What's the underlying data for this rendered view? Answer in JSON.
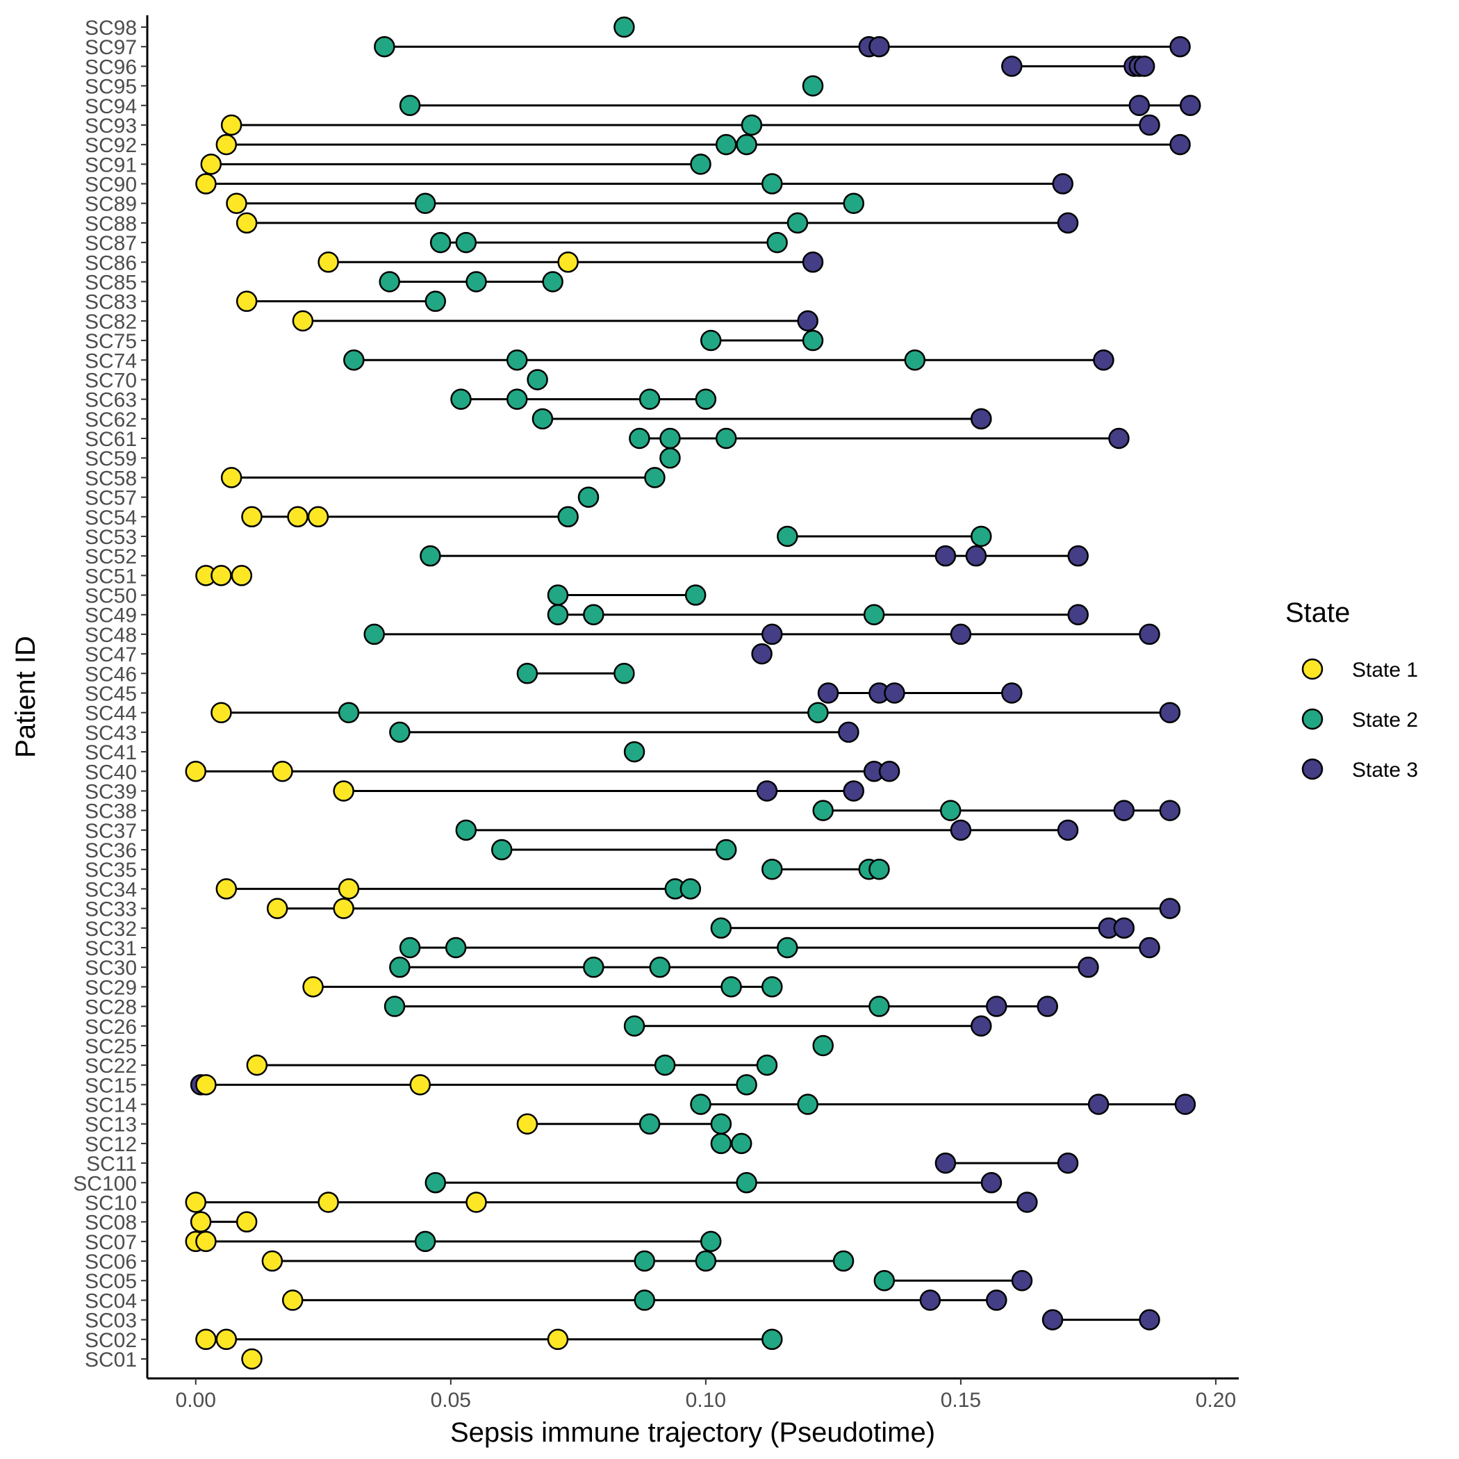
{
  "chart_data": {
    "type": "scatter",
    "subtype": "dot-range per patient",
    "xlabel": "Sepsis immune trajectory (Pseudotime)",
    "ylabel": "Patient ID",
    "xlim": [
      -0.0095,
      0.2045
    ],
    "xticks": [
      0.0,
      0.05,
      0.1,
      0.15,
      0.2
    ],
    "xtick_labels": [
      "0.00",
      "0.05",
      "0.10",
      "0.15",
      "0.20"
    ],
    "grid": false,
    "legend": {
      "title": "State",
      "position": "right",
      "entries": [
        {
          "label": "State 1",
          "color": "#FDE725"
        },
        {
          "label": "State 2",
          "color": "#21A784"
        },
        {
          "label": "State 3",
          "color": "#433E85"
        }
      ]
    },
    "patients": [
      {
        "id": "SC98",
        "points": [
          [
            0.084,
            2
          ]
        ]
      },
      {
        "id": "SC97",
        "points": [
          [
            0.037,
            2
          ],
          [
            0.132,
            3
          ],
          [
            0.134,
            3
          ],
          [
            0.193,
            3
          ]
        ]
      },
      {
        "id": "SC96",
        "points": [
          [
            0.16,
            3
          ],
          [
            0.184,
            3
          ],
          [
            0.185,
            3
          ],
          [
            0.186,
            3
          ]
        ]
      },
      {
        "id": "SC95",
        "points": [
          [
            0.121,
            2
          ]
        ]
      },
      {
        "id": "SC94",
        "points": [
          [
            0.042,
            2
          ],
          [
            0.185,
            3
          ],
          [
            0.195,
            3
          ]
        ]
      },
      {
        "id": "SC93",
        "points": [
          [
            0.007,
            1
          ],
          [
            0.109,
            2
          ],
          [
            0.187,
            3
          ]
        ]
      },
      {
        "id": "SC92",
        "points": [
          [
            0.006,
            1
          ],
          [
            0.104,
            2
          ],
          [
            0.108,
            2
          ],
          [
            0.193,
            3
          ]
        ]
      },
      {
        "id": "SC91",
        "points": [
          [
            0.003,
            1
          ],
          [
            0.099,
            2
          ]
        ]
      },
      {
        "id": "SC90",
        "points": [
          [
            0.002,
            1
          ],
          [
            0.113,
            2
          ],
          [
            0.17,
            3
          ]
        ]
      },
      {
        "id": "SC89",
        "points": [
          [
            0.008,
            1
          ],
          [
            0.045,
            2
          ],
          [
            0.129,
            2
          ]
        ]
      },
      {
        "id": "SC88",
        "points": [
          [
            0.01,
            1
          ],
          [
            0.118,
            2
          ],
          [
            0.171,
            3
          ]
        ]
      },
      {
        "id": "SC87",
        "points": [
          [
            0.048,
            2
          ],
          [
            0.053,
            2
          ],
          [
            0.114,
            2
          ]
        ]
      },
      {
        "id": "SC86",
        "points": [
          [
            0.026,
            1
          ],
          [
            0.073,
            1
          ],
          [
            0.121,
            3
          ]
        ]
      },
      {
        "id": "SC85",
        "points": [
          [
            0.038,
            2
          ],
          [
            0.055,
            2
          ],
          [
            0.07,
            2
          ]
        ]
      },
      {
        "id": "SC83",
        "points": [
          [
            0.01,
            1
          ],
          [
            0.047,
            2
          ]
        ]
      },
      {
        "id": "SC82",
        "points": [
          [
            0.021,
            1
          ],
          [
            0.12,
            3
          ]
        ]
      },
      {
        "id": "SC75",
        "points": [
          [
            0.101,
            2
          ],
          [
            0.121,
            2
          ]
        ]
      },
      {
        "id": "SC74",
        "points": [
          [
            0.031,
            2
          ],
          [
            0.063,
            2
          ],
          [
            0.141,
            2
          ],
          [
            0.178,
            3
          ]
        ]
      },
      {
        "id": "SC70",
        "points": [
          [
            0.067,
            2
          ]
        ]
      },
      {
        "id": "SC63",
        "points": [
          [
            0.052,
            2
          ],
          [
            0.063,
            2
          ],
          [
            0.089,
            2
          ],
          [
            0.1,
            2
          ]
        ]
      },
      {
        "id": "SC62",
        "points": [
          [
            0.068,
            2
          ],
          [
            0.154,
            3
          ],
          [
            0.154,
            3
          ]
        ]
      },
      {
        "id": "SC61",
        "points": [
          [
            0.087,
            2
          ],
          [
            0.093,
            2
          ],
          [
            0.104,
            2
          ],
          [
            0.181,
            3
          ]
        ]
      },
      {
        "id": "SC59",
        "points": [
          [
            0.093,
            2
          ]
        ]
      },
      {
        "id": "SC58",
        "points": [
          [
            0.007,
            1
          ],
          [
            0.09,
            2
          ]
        ]
      },
      {
        "id": "SC57",
        "points": [
          [
            0.077,
            2
          ]
        ]
      },
      {
        "id": "SC54",
        "points": [
          [
            0.011,
            1
          ],
          [
            0.02,
            1
          ],
          [
            0.024,
            1
          ],
          [
            0.073,
            2
          ]
        ]
      },
      {
        "id": "SC53",
        "points": [
          [
            0.116,
            2
          ],
          [
            0.154,
            2
          ]
        ]
      },
      {
        "id": "SC52",
        "points": [
          [
            0.046,
            2
          ],
          [
            0.147,
            3
          ],
          [
            0.153,
            3
          ],
          [
            0.173,
            3
          ]
        ]
      },
      {
        "id": "SC51",
        "points": [
          [
            0.002,
            1
          ],
          [
            0.005,
            1
          ],
          [
            0.009,
            1
          ]
        ]
      },
      {
        "id": "SC50",
        "points": [
          [
            0.071,
            2
          ],
          [
            0.098,
            2
          ]
        ]
      },
      {
        "id": "SC49",
        "points": [
          [
            0.071,
            2
          ],
          [
            0.078,
            2
          ],
          [
            0.133,
            2
          ],
          [
            0.173,
            3
          ]
        ]
      },
      {
        "id": "SC48",
        "points": [
          [
            0.035,
            2
          ],
          [
            0.113,
            3
          ],
          [
            0.15,
            3
          ],
          [
            0.187,
            3
          ]
        ]
      },
      {
        "id": "SC47",
        "points": [
          [
            0.111,
            3
          ]
        ]
      },
      {
        "id": "SC46",
        "points": [
          [
            0.065,
            2
          ],
          [
            0.084,
            2
          ]
        ]
      },
      {
        "id": "SC45",
        "points": [
          [
            0.124,
            3
          ],
          [
            0.134,
            3
          ],
          [
            0.137,
            3
          ],
          [
            0.16,
            3
          ]
        ]
      },
      {
        "id": "SC44",
        "points": [
          [
            0.005,
            1
          ],
          [
            0.03,
            2
          ],
          [
            0.122,
            2
          ],
          [
            0.191,
            3
          ]
        ]
      },
      {
        "id": "SC43",
        "points": [
          [
            0.04,
            2
          ],
          [
            0.128,
            3
          ]
        ]
      },
      {
        "id": "SC41",
        "points": [
          [
            0.086,
            2
          ]
        ]
      },
      {
        "id": "SC40",
        "points": [
          [
            0.0,
            1
          ],
          [
            0.017,
            1
          ],
          [
            0.133,
            3
          ],
          [
            0.136,
            3
          ]
        ]
      },
      {
        "id": "SC39",
        "points": [
          [
            0.029,
            1
          ],
          [
            0.112,
            3
          ],
          [
            0.129,
            3
          ]
        ]
      },
      {
        "id": "SC38",
        "points": [
          [
            0.123,
            2
          ],
          [
            0.148,
            2
          ],
          [
            0.182,
            3
          ],
          [
            0.191,
            3
          ]
        ]
      },
      {
        "id": "SC37",
        "points": [
          [
            0.053,
            2
          ],
          [
            0.15,
            3
          ],
          [
            0.171,
            3
          ]
        ]
      },
      {
        "id": "SC36",
        "points": [
          [
            0.06,
            2
          ],
          [
            0.104,
            2
          ]
        ]
      },
      {
        "id": "SC35",
        "points": [
          [
            0.113,
            2
          ],
          [
            0.132,
            2
          ],
          [
            0.134,
            2
          ]
        ]
      },
      {
        "id": "SC34",
        "points": [
          [
            0.006,
            1
          ],
          [
            0.03,
            1
          ],
          [
            0.094,
            2
          ],
          [
            0.097,
            2
          ]
        ]
      },
      {
        "id": "SC33",
        "points": [
          [
            0.016,
            1
          ],
          [
            0.029,
            1
          ],
          [
            0.191,
            3
          ]
        ]
      },
      {
        "id": "SC32",
        "points": [
          [
            0.103,
            2
          ],
          [
            0.179,
            3
          ],
          [
            0.182,
            3
          ]
        ]
      },
      {
        "id": "SC31",
        "points": [
          [
            0.042,
            2
          ],
          [
            0.051,
            2
          ],
          [
            0.116,
            2
          ],
          [
            0.187,
            3
          ]
        ]
      },
      {
        "id": "SC30",
        "points": [
          [
            0.04,
            2
          ],
          [
            0.078,
            2
          ],
          [
            0.091,
            2
          ],
          [
            0.175,
            3
          ]
        ]
      },
      {
        "id": "SC29",
        "points": [
          [
            0.023,
            1
          ],
          [
            0.105,
            2
          ],
          [
            0.113,
            2
          ]
        ]
      },
      {
        "id": "SC28",
        "points": [
          [
            0.039,
            2
          ],
          [
            0.134,
            2
          ],
          [
            0.157,
            3
          ],
          [
            0.167,
            3
          ]
        ]
      },
      {
        "id": "SC26",
        "points": [
          [
            0.086,
            2
          ],
          [
            0.154,
            3
          ]
        ]
      },
      {
        "id": "SC25",
        "points": [
          [
            0.123,
            2
          ]
        ]
      },
      {
        "id": "SC22",
        "points": [
          [
            0.012,
            1
          ],
          [
            0.092,
            2
          ],
          [
            0.112,
            2
          ]
        ]
      },
      {
        "id": "SC15",
        "points": [
          [
            0.001,
            3
          ],
          [
            0.002,
            1
          ],
          [
            0.044,
            1
          ],
          [
            0.108,
            2
          ]
        ]
      },
      {
        "id": "SC14",
        "points": [
          [
            0.099,
            2
          ],
          [
            0.12,
            2
          ],
          [
            0.177,
            3
          ],
          [
            0.194,
            3
          ]
        ]
      },
      {
        "id": "SC13",
        "points": [
          [
            0.065,
            1
          ],
          [
            0.089,
            2
          ],
          [
            0.103,
            2
          ]
        ]
      },
      {
        "id": "SC12",
        "points": [
          [
            0.103,
            2
          ],
          [
            0.107,
            2
          ]
        ]
      },
      {
        "id": "SC11",
        "points": [
          [
            0.147,
            3
          ],
          [
            0.171,
            3
          ]
        ]
      },
      {
        "id": "SC100",
        "points": [
          [
            0.047,
            2
          ],
          [
            0.108,
            2
          ],
          [
            0.156,
            3
          ]
        ]
      },
      {
        "id": "SC10",
        "points": [
          [
            0.0,
            1
          ],
          [
            0.026,
            1
          ],
          [
            0.055,
            1
          ],
          [
            0.163,
            3
          ]
        ]
      },
      {
        "id": "SC08",
        "points": [
          [
            0.001,
            1
          ],
          [
            0.01,
            1
          ]
        ]
      },
      {
        "id": "SC07",
        "points": [
          [
            0.0,
            1
          ],
          [
            0.002,
            1
          ],
          [
            0.045,
            2
          ],
          [
            0.101,
            2
          ]
        ]
      },
      {
        "id": "SC06",
        "points": [
          [
            0.015,
            1
          ],
          [
            0.088,
            2
          ],
          [
            0.1,
            2
          ],
          [
            0.127,
            2
          ]
        ]
      },
      {
        "id": "SC05",
        "points": [
          [
            0.135,
            2
          ],
          [
            0.162,
            3
          ]
        ]
      },
      {
        "id": "SC04",
        "points": [
          [
            0.019,
            1
          ],
          [
            0.088,
            2
          ],
          [
            0.144,
            3
          ],
          [
            0.157,
            3
          ]
        ]
      },
      {
        "id": "SC03",
        "points": [
          [
            0.168,
            3
          ],
          [
            0.187,
            3
          ]
        ]
      },
      {
        "id": "SC02",
        "points": [
          [
            0.002,
            1
          ],
          [
            0.006,
            1
          ],
          [
            0.071,
            1
          ],
          [
            0.113,
            2
          ]
        ]
      },
      {
        "id": "SC01",
        "points": [
          [
            0.011,
            1
          ]
        ]
      }
    ]
  }
}
